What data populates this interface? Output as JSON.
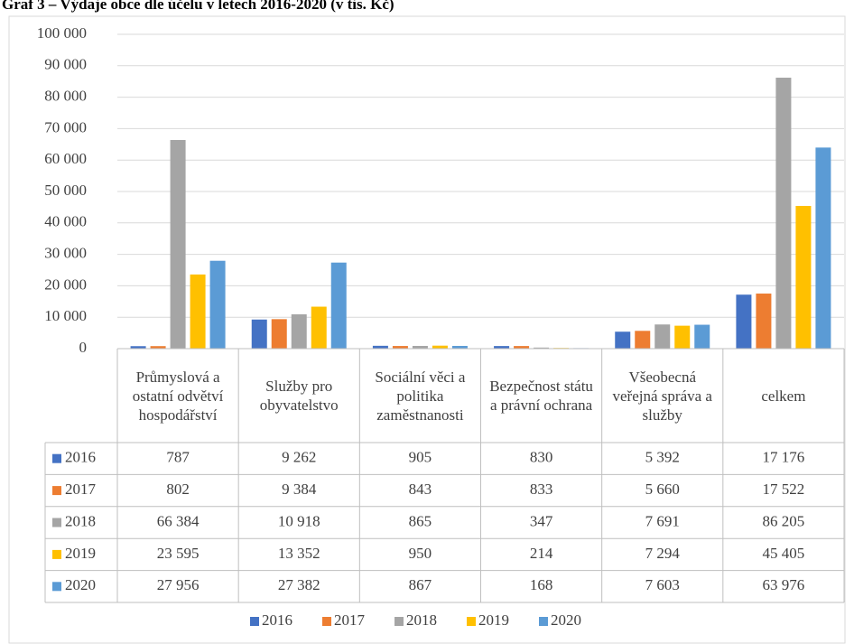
{
  "chart_data": {
    "type": "bar",
    "title": "Graf 3 – Výdaje obce dle účelu v letech 2016-2020 (v tis. Kč)",
    "categories": [
      "Průmyslová a ostatní odvětví hospodářství",
      "Služby pro obyvatelstvo",
      "Sociální věci a politika zaměstnanosti",
      "Bezpečnost státu a právní ochrana",
      "Všeobecná veřejná správa a služby",
      "celkem"
    ],
    "series": [
      {
        "name": "2016",
        "color": "#4472c4",
        "values": [
          787,
          9262,
          905,
          830,
          5392,
          17176
        ],
        "value_labels": [
          "787",
          "9 262",
          "905",
          "830",
          "5 392",
          "17 176"
        ]
      },
      {
        "name": "2017",
        "color": "#ed7d31",
        "values": [
          802,
          9384,
          843,
          833,
          5660,
          17522
        ],
        "value_labels": [
          "802",
          "9 384",
          "843",
          "833",
          "5 660",
          "17 522"
        ]
      },
      {
        "name": "2018",
        "color": "#a5a5a5",
        "values": [
          66384,
          10918,
          865,
          347,
          7691,
          86205
        ],
        "value_labels": [
          "66 384",
          "10 918",
          "865",
          "347",
          "7 691",
          "86 205"
        ]
      },
      {
        "name": "2019",
        "color": "#ffc000",
        "values": [
          23595,
          13352,
          950,
          214,
          7294,
          45405
        ],
        "value_labels": [
          "23 595",
          "13 352",
          "950",
          "214",
          "7 294",
          "45 405"
        ]
      },
      {
        "name": "2020",
        "color": "#5b9bd5",
        "values": [
          27956,
          27382,
          867,
          168,
          7603,
          63976
        ],
        "value_labels": [
          "27 956",
          "27 382",
          "867",
          "168",
          "7 603",
          "63 976"
        ]
      }
    ],
    "ylim": [
      0,
      100000
    ],
    "yticks": [
      0,
      {
        "value": 10000,
        "label": "10 000"
      },
      {
        "value": 20000,
        "label": "20 000"
      },
      {
        "value": 30000,
        "label": "30 000"
      },
      {
        "value": 40000,
        "label": "40 000"
      },
      {
        "value": 50000,
        "label": "50 000"
      },
      {
        "value": 60000,
        "label": "60 000"
      },
      {
        "value": 70000,
        "label": "70 000"
      },
      {
        "value": 80000,
        "label": "80 000"
      },
      {
        "value": 90000,
        "label": "90 000"
      },
      {
        "value": 100000,
        "label": "100 000"
      }
    ],
    "grid": true,
    "legend": "bottom"
  }
}
